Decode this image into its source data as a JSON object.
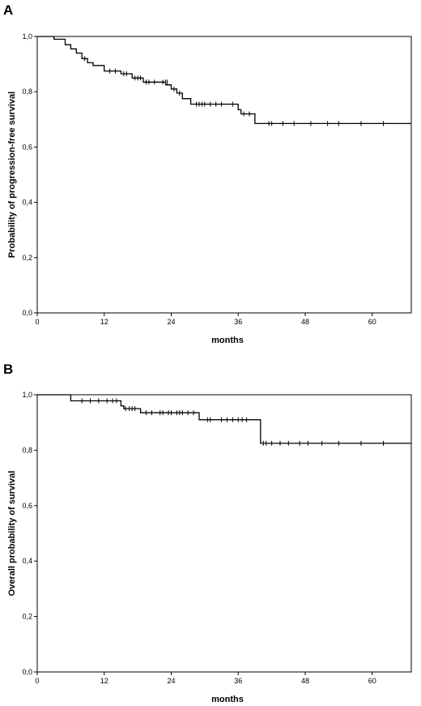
{
  "chart_data": [
    {
      "type": "line",
      "panel": "A",
      "xlabel": "months",
      "ylabel": "Probability of progression-free survival",
      "xlim": [
        0,
        67
      ],
      "ylim": [
        0,
        1
      ],
      "xticks": [
        "0",
        "12",
        "24",
        "36",
        "48",
        "60"
      ],
      "yticks": [
        "0,0",
        "0,2",
        "0,4",
        "0,6",
        "0,8",
        "1,0"
      ],
      "step_points": [
        [
          0,
          1.0
        ],
        [
          3,
          0.99
        ],
        [
          5,
          0.97
        ],
        [
          6,
          0.955
        ],
        [
          7,
          0.94
        ],
        [
          8,
          0.92
        ],
        [
          9,
          0.905
        ],
        [
          10,
          0.895
        ],
        [
          12,
          0.875
        ],
        [
          15,
          0.865
        ],
        [
          17,
          0.85
        ],
        [
          19,
          0.835
        ],
        [
          23,
          0.825
        ],
        [
          24,
          0.81
        ],
        [
          25,
          0.795
        ],
        [
          26,
          0.775
        ],
        [
          27.5,
          0.755
        ],
        [
          36,
          0.735
        ],
        [
          36.5,
          0.72
        ],
        [
          39,
          0.685
        ],
        [
          67,
          0.685
        ]
      ],
      "censored": [
        [
          8.5,
          0.92
        ],
        [
          13,
          0.875
        ],
        [
          14,
          0.875
        ],
        [
          15.5,
          0.865
        ],
        [
          16,
          0.865
        ],
        [
          17.5,
          0.85
        ],
        [
          18,
          0.85
        ],
        [
          18.5,
          0.85
        ],
        [
          19.5,
          0.835
        ],
        [
          20,
          0.835
        ],
        [
          21,
          0.835
        ],
        [
          22.5,
          0.835
        ],
        [
          23,
          0.835
        ],
        [
          23.3,
          0.835
        ],
        [
          24.5,
          0.81
        ],
        [
          25.5,
          0.795
        ],
        [
          28.5,
          0.755
        ],
        [
          29,
          0.755
        ],
        [
          29.5,
          0.755
        ],
        [
          30,
          0.755
        ],
        [
          31,
          0.755
        ],
        [
          32,
          0.755
        ],
        [
          33,
          0.755
        ],
        [
          35,
          0.755
        ],
        [
          37,
          0.72
        ],
        [
          38,
          0.72
        ],
        [
          41.5,
          0.685
        ],
        [
          42,
          0.685
        ],
        [
          44,
          0.685
        ],
        [
          46,
          0.685
        ],
        [
          49,
          0.685
        ],
        [
          52,
          0.685
        ],
        [
          54,
          0.685
        ],
        [
          58,
          0.685
        ],
        [
          62,
          0.685
        ],
        [
          67,
          0.685
        ]
      ]
    },
    {
      "type": "line",
      "panel": "B",
      "xlabel": "months",
      "ylabel": "Overall probability of survival",
      "xlim": [
        0,
        67
      ],
      "ylim": [
        0,
        1
      ],
      "xticks": [
        "0",
        "12",
        "24",
        "36",
        "48",
        "60"
      ],
      "yticks": [
        "0,0",
        "0,2",
        "0,4",
        "0,6",
        "0,8",
        "1,0"
      ],
      "step_points": [
        [
          0,
          1.0
        ],
        [
          6,
          0.978
        ],
        [
          15,
          0.96
        ],
        [
          15.5,
          0.95
        ],
        [
          18.5,
          0.935
        ],
        [
          29,
          0.91
        ],
        [
          40,
          0.825
        ],
        [
          67,
          0.825
        ]
      ],
      "censored": [
        [
          8,
          0.978
        ],
        [
          9.5,
          0.978
        ],
        [
          11,
          0.978
        ],
        [
          12.5,
          0.978
        ],
        [
          13.5,
          0.978
        ],
        [
          14.2,
          0.978
        ],
        [
          15.8,
          0.95
        ],
        [
          16.5,
          0.95
        ],
        [
          17,
          0.95
        ],
        [
          17.5,
          0.95
        ],
        [
          19.5,
          0.935
        ],
        [
          20.5,
          0.935
        ],
        [
          22,
          0.935
        ],
        [
          22.5,
          0.935
        ],
        [
          23.5,
          0.935
        ],
        [
          24,
          0.935
        ],
        [
          25,
          0.935
        ],
        [
          25.5,
          0.935
        ],
        [
          26,
          0.935
        ],
        [
          27,
          0.935
        ],
        [
          28,
          0.935
        ],
        [
          30.5,
          0.91
        ],
        [
          31,
          0.91
        ],
        [
          33,
          0.91
        ],
        [
          34,
          0.91
        ],
        [
          35,
          0.91
        ],
        [
          36,
          0.91
        ],
        [
          36.7,
          0.91
        ],
        [
          37.5,
          0.91
        ],
        [
          40.5,
          0.825
        ],
        [
          41,
          0.825
        ],
        [
          42,
          0.825
        ],
        [
          43.5,
          0.825
        ],
        [
          45,
          0.825
        ],
        [
          47,
          0.825
        ],
        [
          48.5,
          0.825
        ],
        [
          51,
          0.825
        ],
        [
          54,
          0.825
        ],
        [
          58,
          0.825
        ],
        [
          62,
          0.825
        ],
        [
          67,
          0.825
        ]
      ]
    }
  ]
}
